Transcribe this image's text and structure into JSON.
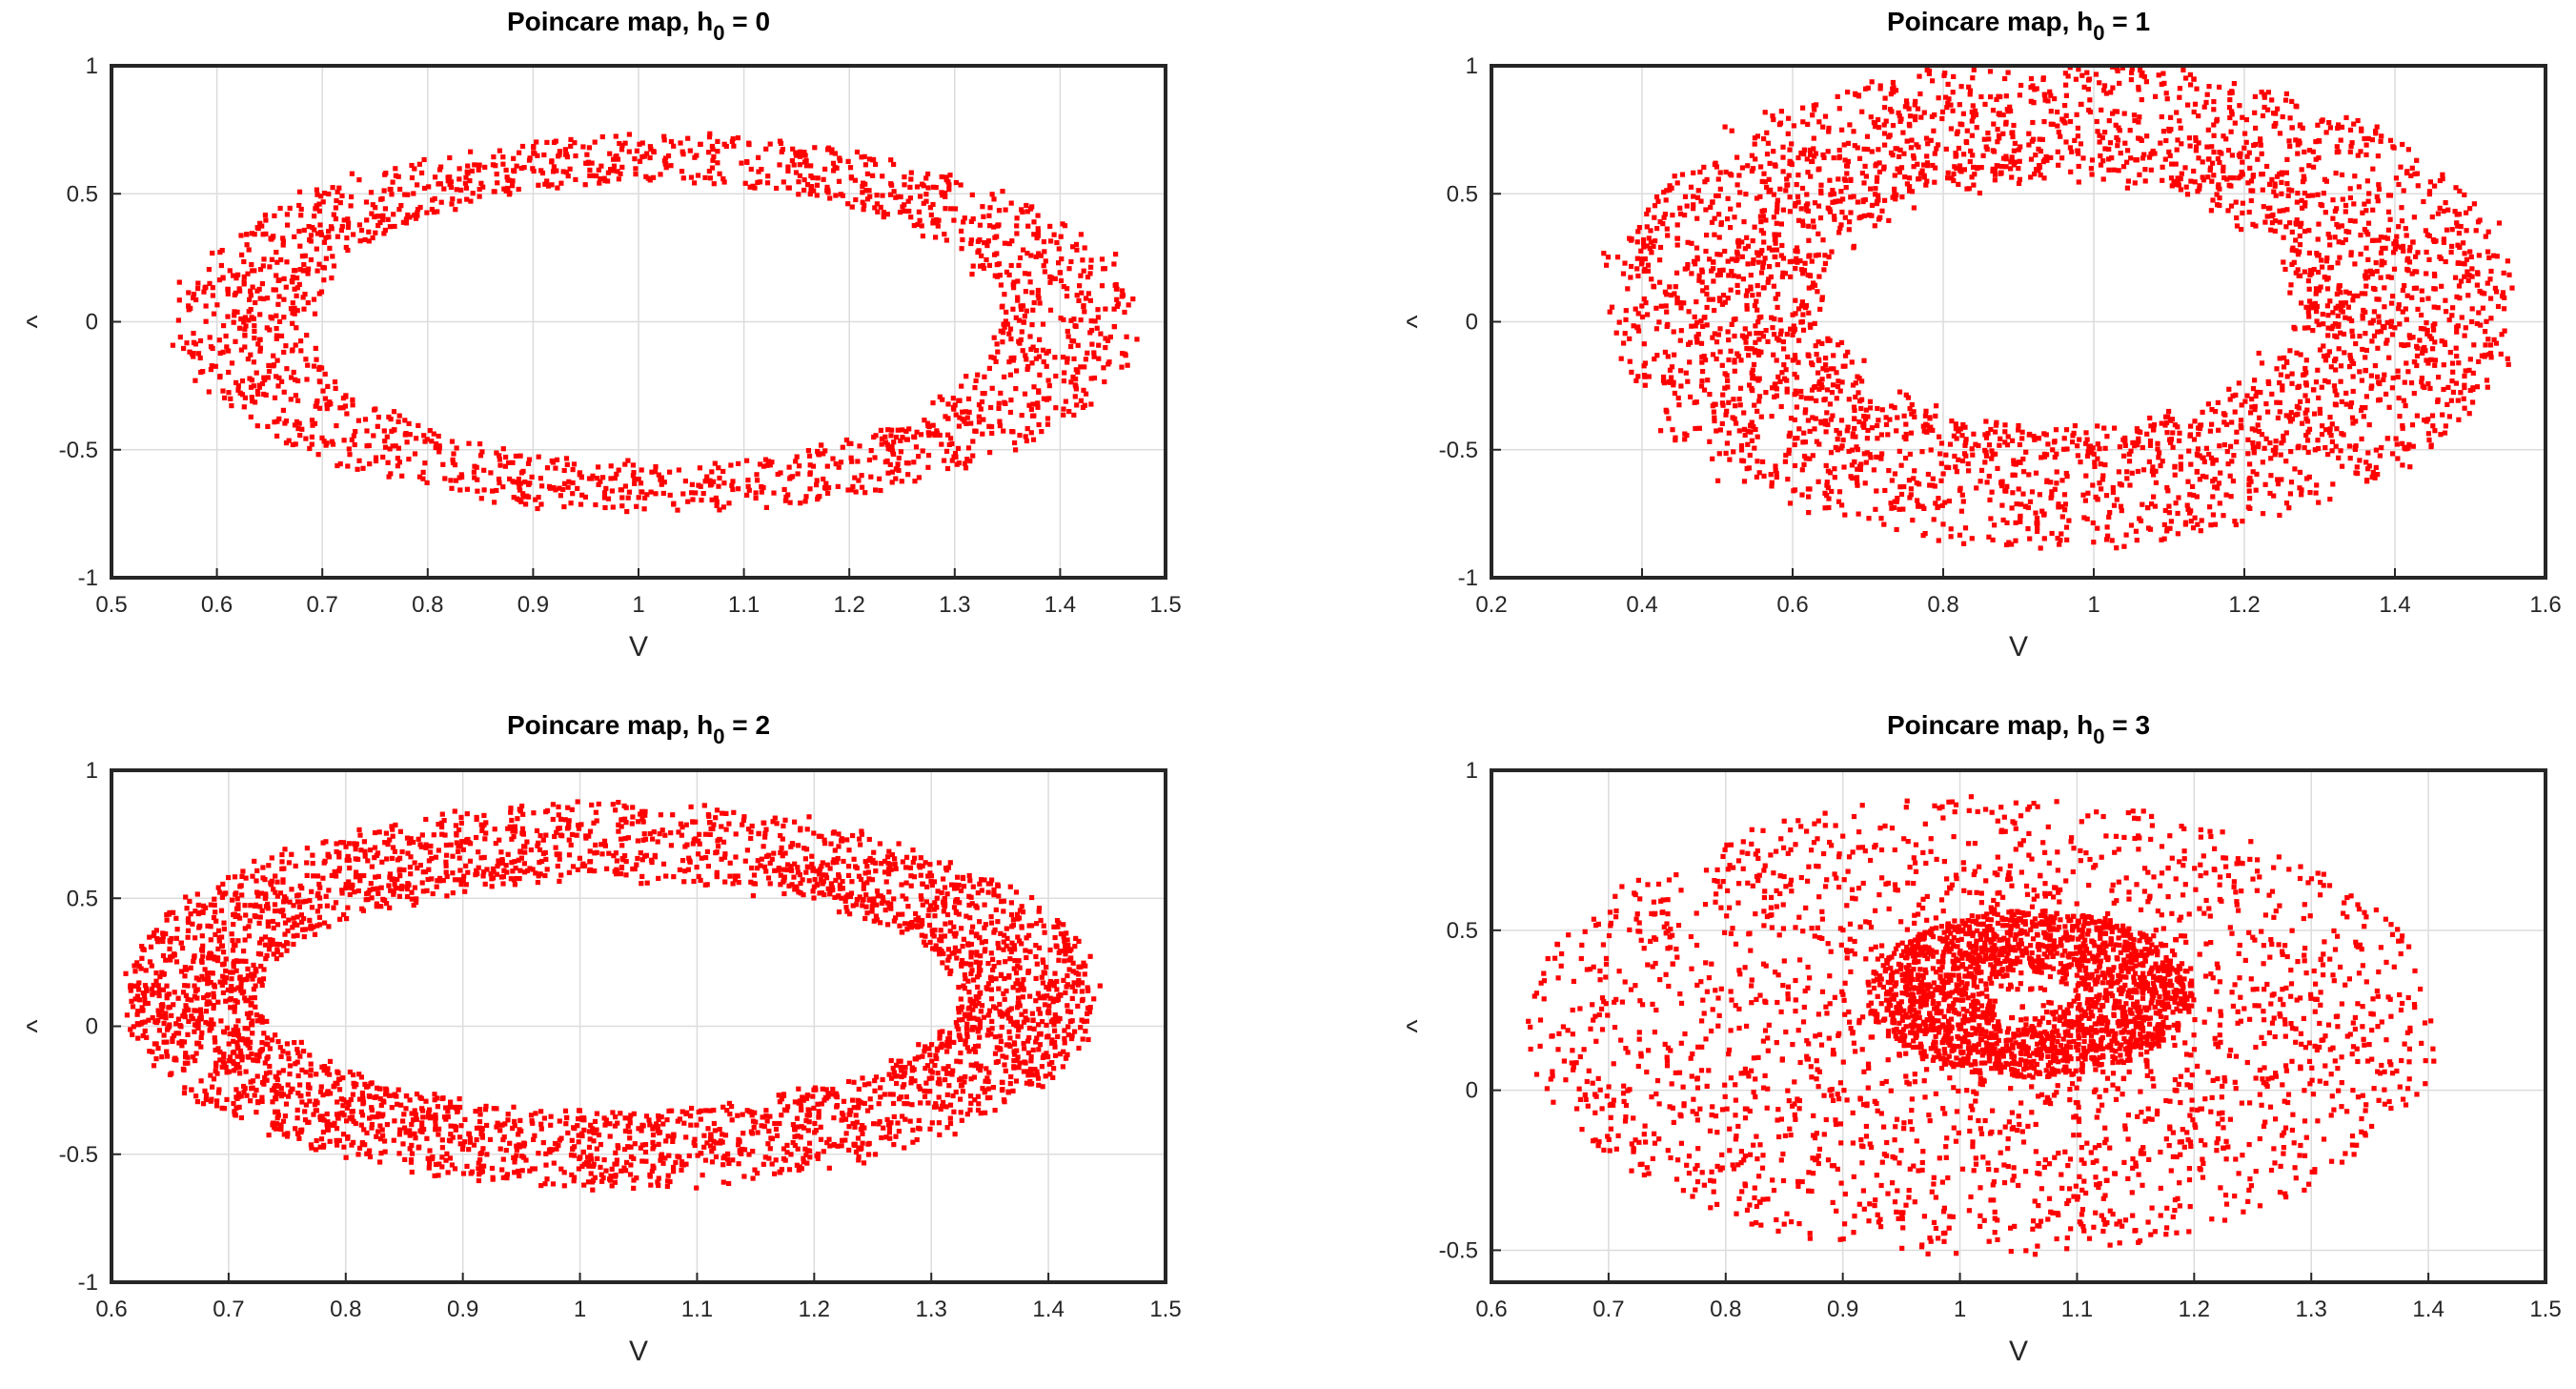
{
  "chart_data": [
    {
      "type": "scatter",
      "title": "Poincare map, h",
      "title_sub": "0",
      "title_suffix": " = 0",
      "xlabel": "V",
      "ylabel": "^",
      "xlim": [
        0.5,
        1.5
      ],
      "ylim": [
        -1,
        1
      ],
      "xticks": [
        "0.5",
        "0.6",
        "0.7",
        "0.8",
        "0.9",
        "1",
        "1.1",
        "1.2",
        "1.3",
        "1.4",
        "1.5"
      ],
      "yticks": [
        "-1",
        "-0.5",
        "0",
        "0.5",
        "1"
      ],
      "grid": true,
      "marker_color": "#ff0000",
      "distribution": {
        "shape": "ring",
        "center": [
          1.015,
          -0.005
        ],
        "rx_outer": 0.455,
        "ry_outer": 0.735,
        "rx_inner": 0.325,
        "ry_inner": 0.555,
        "points": 1800,
        "seed": 11
      }
    },
    {
      "type": "scatter",
      "title": "Poincare map, h",
      "title_sub": "0",
      "title_suffix": " = 1",
      "xlabel": "V",
      "ylabel": "^",
      "xlim": [
        0.2,
        1.6
      ],
      "ylim": [
        -1,
        1
      ],
      "xticks": [
        "0.2",
        "0.4",
        "0.6",
        "0.8",
        "1",
        "1.2",
        "1.4",
        "1.6"
      ],
      "yticks": [
        "-1",
        "-0.5",
        "0",
        "0.5",
        "1"
      ],
      "grid": true,
      "marker_color": "#ff0000",
      "distribution": {
        "shape": "ring",
        "center": [
          0.955,
          0.07
        ],
        "rx_outer": 0.6,
        "ry_outer": 0.95,
        "rx_inner": 0.32,
        "ry_inner": 0.5,
        "points": 3200,
        "seed": 23
      }
    },
    {
      "type": "scatter",
      "title": "Poincare map, h",
      "title_sub": "0",
      "title_suffix": " = 2",
      "xlabel": "V",
      "ylabel": "^",
      "xlim": [
        0.6,
        1.5
      ],
      "ylim": [
        -1,
        1
      ],
      "xticks": [
        "0.6",
        "0.7",
        "0.8",
        "0.9",
        "1",
        "1.1",
        "1.2",
        "1.3",
        "1.4",
        "1.5"
      ],
      "yticks": [
        "-1",
        "-0.5",
        "0",
        "0.5",
        "1"
      ],
      "grid": true,
      "marker_color": "#ff0000",
      "distribution": {
        "shape": "ring",
        "center": [
          1.025,
          0.12
        ],
        "rx_outer": 0.415,
        "ry_outer": 0.75,
        "rx_inner": 0.3,
        "ry_inner": 0.45,
        "points": 3400,
        "seed": 37
      }
    },
    {
      "type": "scatter",
      "title": "Poincare map, h",
      "title_sub": "0",
      "title_suffix": " = 3",
      "xlabel": "V",
      "ylabel": "^",
      "xlim": [
        0.6,
        1.5
      ],
      "ylim": [
        -0.6,
        1
      ],
      "xticks": [
        "0.6",
        "0.7",
        "0.8",
        "0.9",
        "1",
        "1.1",
        "1.2",
        "1.3",
        "1.4",
        "1.5"
      ],
      "yticks": [
        "-0.5",
        "0",
        "0.5",
        "1"
      ],
      "grid": true,
      "marker_color": "#ff0000",
      "distribution": {
        "shape": "cloud",
        "center": [
          1.02,
          0.2
        ],
        "rx": 0.39,
        "ry": 0.72,
        "points": 2200,
        "core_center": [
          1.06,
          0.3
        ],
        "core_rx": 0.14,
        "core_ry": 0.26,
        "core_points": 1700,
        "seed": 53
      }
    }
  ]
}
